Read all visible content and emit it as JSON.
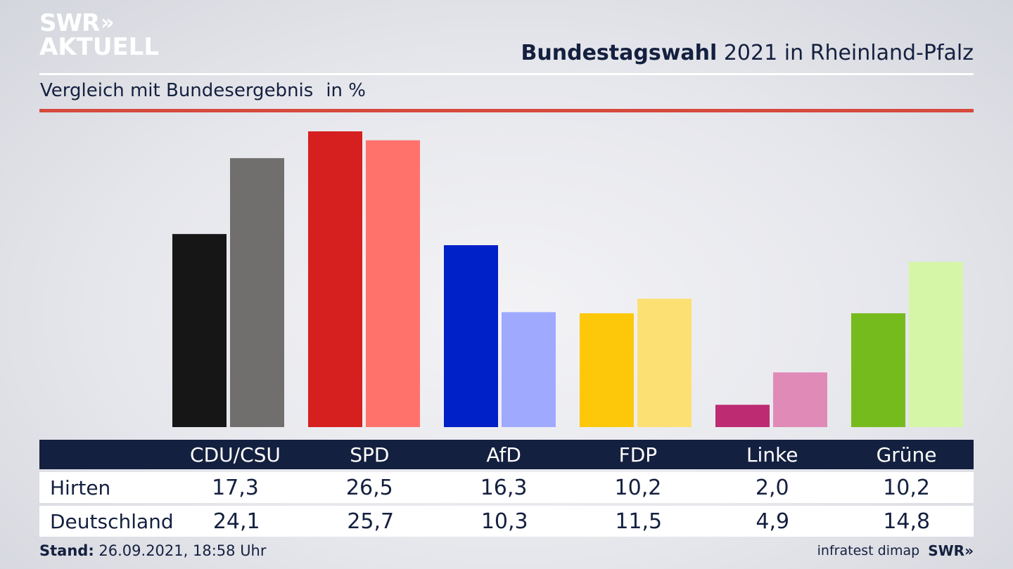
{
  "brand": {
    "line1": "SWR",
    "line1_chevrons": "»",
    "line2": "AKTUELL"
  },
  "header": {
    "title_bold": "Bundestagswahl",
    "title_rest": "2021 in Rheinland-Pfalz"
  },
  "subtitle": {
    "text": "Vergleich mit Bundesergebnis",
    "unit": "in %"
  },
  "chart_data": {
    "type": "bar",
    "categories": [
      "CDU/CSU",
      "SPD",
      "AfD",
      "FDP",
      "Linke",
      "Grüne"
    ],
    "series": [
      {
        "name": "Hirten",
        "values": [
          17.3,
          26.5,
          16.3,
          10.2,
          2.0,
          10.2
        ],
        "colors": [
          "#161616",
          "#d61f1f",
          "#0020c8",
          "#fdc80a",
          "#bd2b72",
          "#76bb1e"
        ]
      },
      {
        "name": "Deutschland",
        "values": [
          24.1,
          25.7,
          10.3,
          11.5,
          4.9,
          14.8
        ],
        "colors": [
          "#716f6d",
          "#ff726c",
          "#9faaff",
          "#fde073",
          "#e08ab8",
          "#d4f6a6"
        ]
      }
    ],
    "ylim": [
      0,
      26.5
    ]
  },
  "table": {
    "rows": [
      {
        "label": "Hirten",
        "values": [
          "17,3",
          "26,5",
          "16,3",
          "10,2",
          "2,0",
          "10,2"
        ]
      },
      {
        "label": "Deutschland",
        "values": [
          "24,1",
          "25,7",
          "10,3",
          "11,5",
          "4,9",
          "14,8"
        ]
      }
    ]
  },
  "footer": {
    "stand_label": "Stand:",
    "stand_value": "26.09.2021, 18:58 Uhr",
    "source": "infratest dimap",
    "logo": "SWR»"
  }
}
